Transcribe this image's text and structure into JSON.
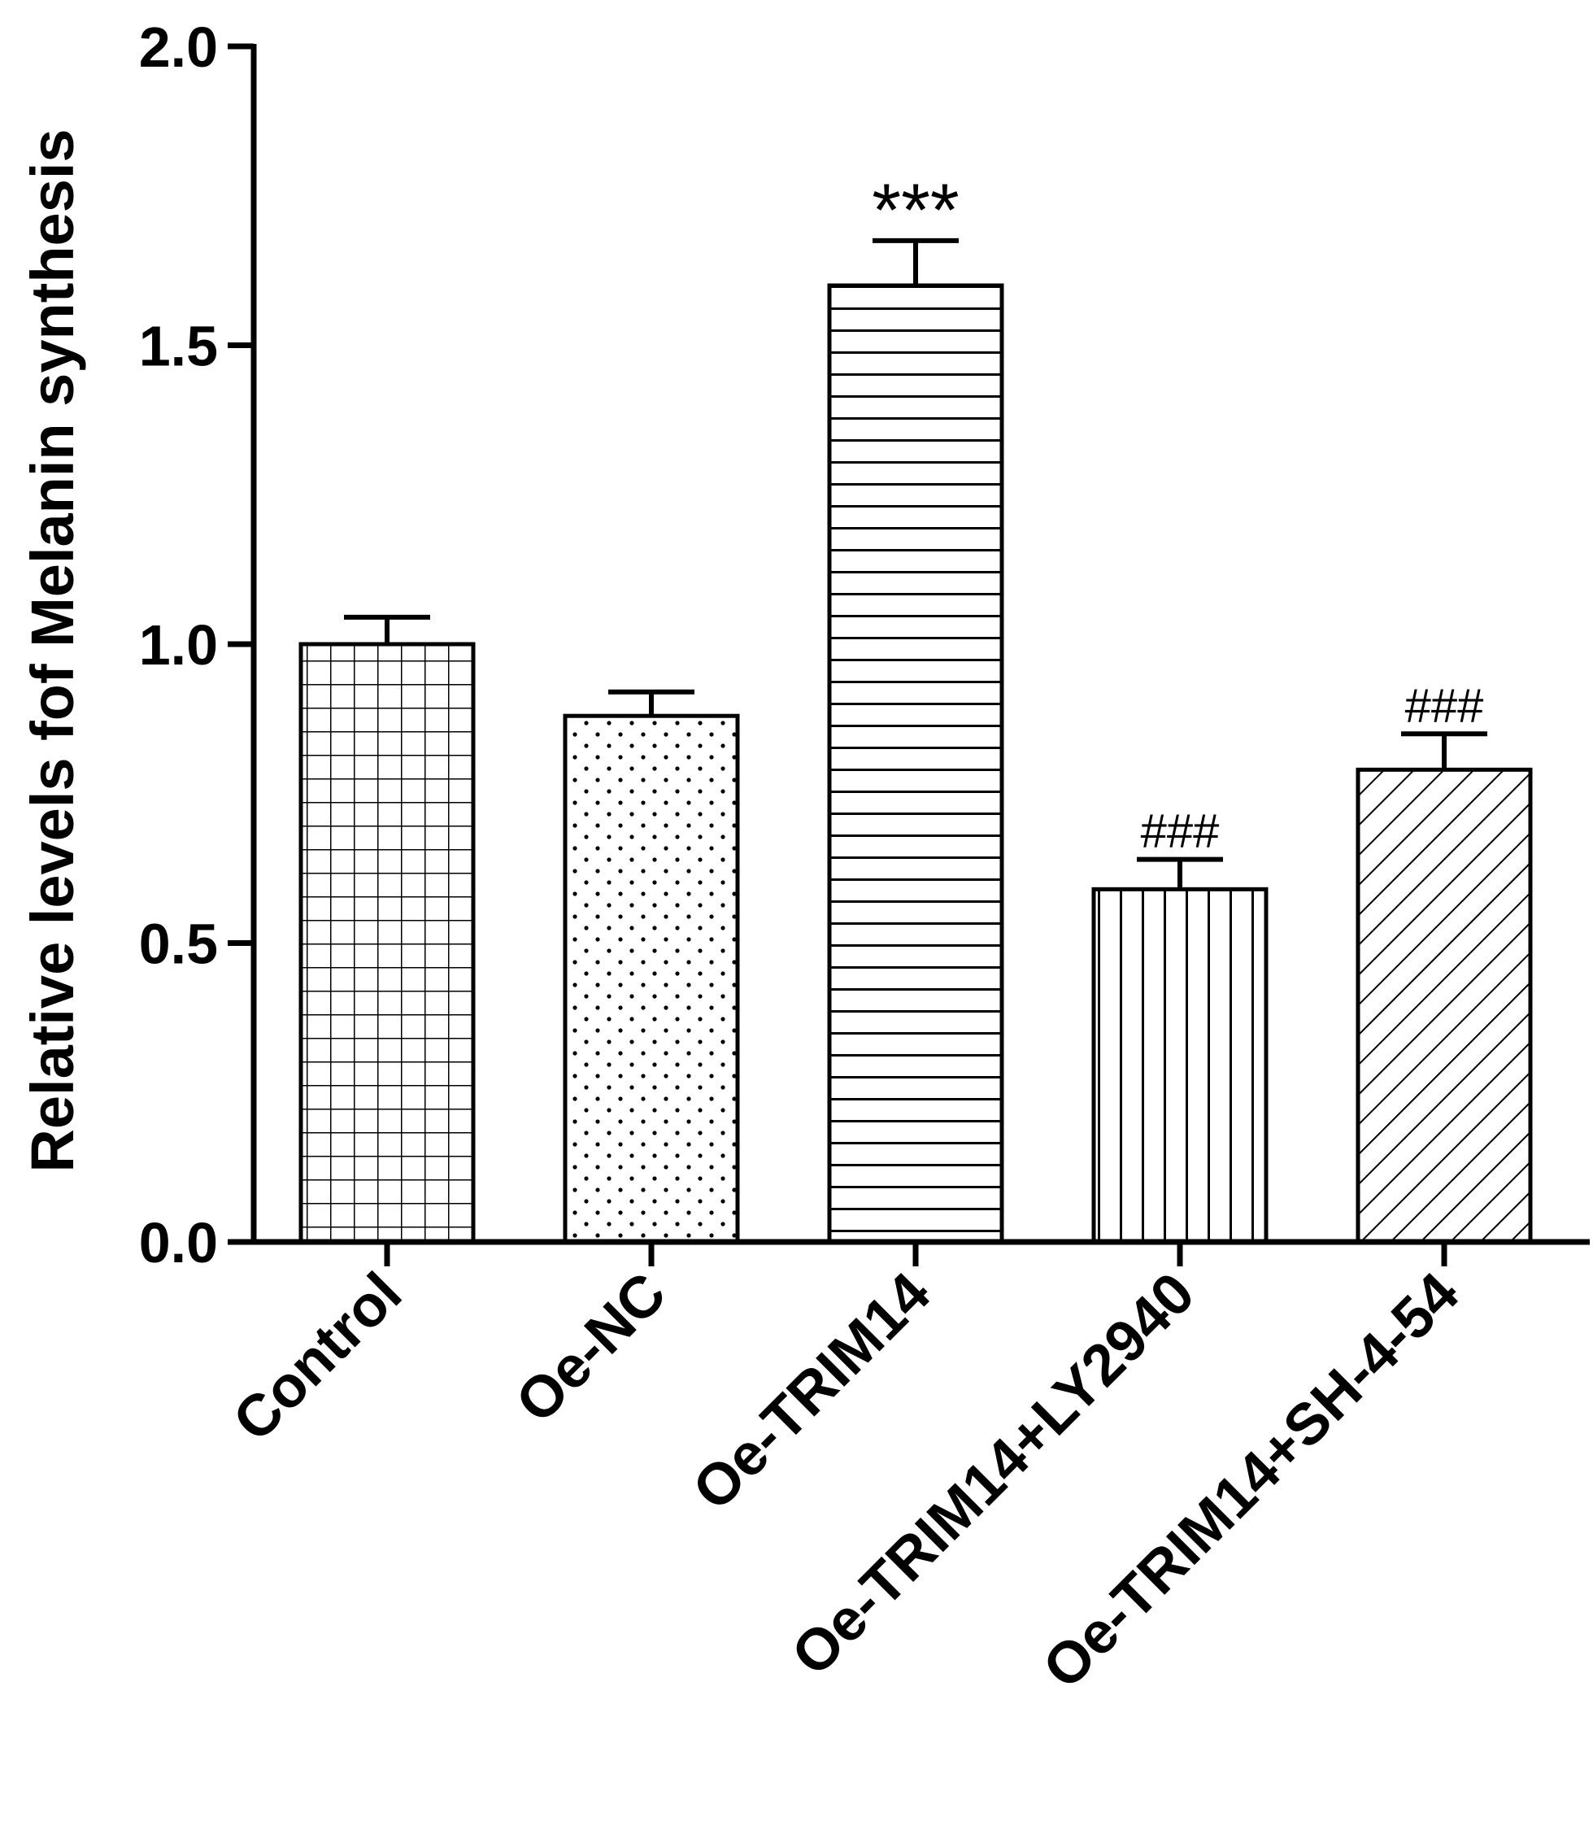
{
  "chart_data": {
    "type": "bar",
    "title": "",
    "xlabel": "",
    "ylabel": "Relative levels fof Melanin synthesis",
    "ylim": [
      0,
      2.0
    ],
    "yticks": [
      "0.0",
      "0.5",
      "1.0",
      "1.5",
      "2.0"
    ],
    "categories": [
      "Control",
      "Oe-NC",
      "Oe-TRIM14",
      "Oe-TRIM14+LY2940",
      "Oe-TRIM14+SH-4-54"
    ],
    "values": [
      1.0,
      0.88,
      1.6,
      0.59,
      0.79
    ],
    "errors": [
      0.045,
      0.04,
      0.075,
      0.05,
      0.06
    ],
    "annotations": [
      "",
      "",
      "***",
      "###",
      "###"
    ],
    "patterns": [
      "grid",
      "dots",
      "horizontal-lines",
      "vertical-lines",
      "diagonal-lines"
    ],
    "grid": false,
    "legend": "none",
    "colors": {
      "stroke": "#000000",
      "fill": "#ffffff"
    }
  }
}
